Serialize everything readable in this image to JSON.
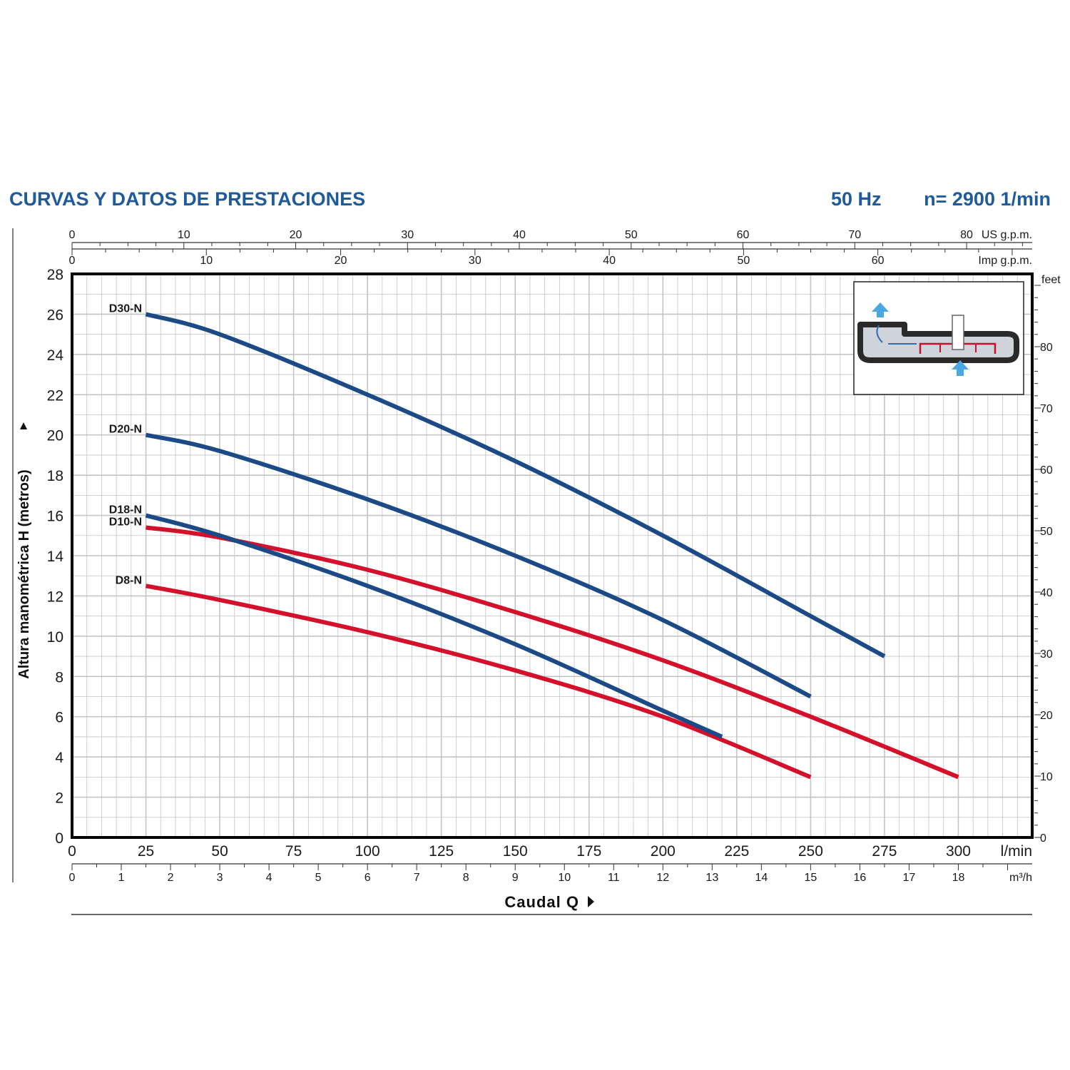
{
  "header": {
    "title": "CURVAS Y DATOS DE PRESTACIONES",
    "frequency": "50 Hz",
    "speed": "n= 2900  1/min"
  },
  "colors": {
    "header": "#1f5a9a",
    "blue_curve": "#1c4a86",
    "red_curve": "#d4102b",
    "grid": "#c4c4c4",
    "frame": "#000000"
  },
  "chart_data": {
    "type": "line",
    "xlabel": "Caudal Q",
    "ylabel": "Altura manométrica H (metros)",
    "x_unit": "l/min",
    "xlim": [
      0,
      325
    ],
    "ylim": [
      0,
      28
    ],
    "grid": true,
    "x_ticks": [
      0,
      25,
      50,
      75,
      100,
      125,
      150,
      175,
      200,
      225,
      250,
      275,
      300
    ],
    "y_ticks": [
      0,
      2,
      4,
      6,
      8,
      10,
      12,
      14,
      16,
      18,
      20,
      22,
      24,
      26,
      28
    ],
    "secondary_axes": {
      "us_gpm": {
        "label": "US g.p.m.",
        "ticks": [
          0,
          10,
          20,
          30,
          40,
          50,
          60,
          70,
          80
        ]
      },
      "imp_gpm": {
        "label": "Imp g.p.m.",
        "ticks": [
          0,
          10,
          20,
          30,
          40,
          50,
          60
        ]
      },
      "m3h": {
        "label": "m³/h",
        "ticks": [
          0,
          1,
          2,
          3,
          4,
          5,
          6,
          7,
          8,
          9,
          10,
          11,
          12,
          13,
          14,
          15,
          16,
          17,
          18
        ]
      },
      "feet": {
        "label": "feet",
        "ticks": [
          0,
          10,
          20,
          30,
          40,
          50,
          60,
          70,
          80
        ]
      }
    },
    "series": [
      {
        "name": "D30-N",
        "color": "blue",
        "x": [
          25,
          50,
          100,
          150,
          200,
          250,
          275
        ],
        "y": [
          26,
          25,
          22,
          18.7,
          15,
          11,
          9
        ]
      },
      {
        "name": "D20-N",
        "color": "blue",
        "x": [
          25,
          50,
          100,
          150,
          200,
          250
        ],
        "y": [
          20,
          19.2,
          16.8,
          14,
          10.8,
          7
        ]
      },
      {
        "name": "D18-N",
        "color": "blue",
        "x": [
          25,
          50,
          100,
          150,
          200,
          220
        ],
        "y": [
          16,
          15,
          12.5,
          9.6,
          6.3,
          5
        ]
      },
      {
        "name": "D10-N",
        "color": "red",
        "x": [
          25,
          50,
          100,
          150,
          200,
          250,
          300
        ],
        "y": [
          15.4,
          14.9,
          13.3,
          11.2,
          8.8,
          6,
          3
        ]
      },
      {
        "name": "D8-N",
        "color": "red",
        "x": [
          25,
          50,
          100,
          150,
          200,
          250
        ],
        "y": [
          12.5,
          11.8,
          10.2,
          8.3,
          6,
          3
        ]
      }
    ]
  }
}
